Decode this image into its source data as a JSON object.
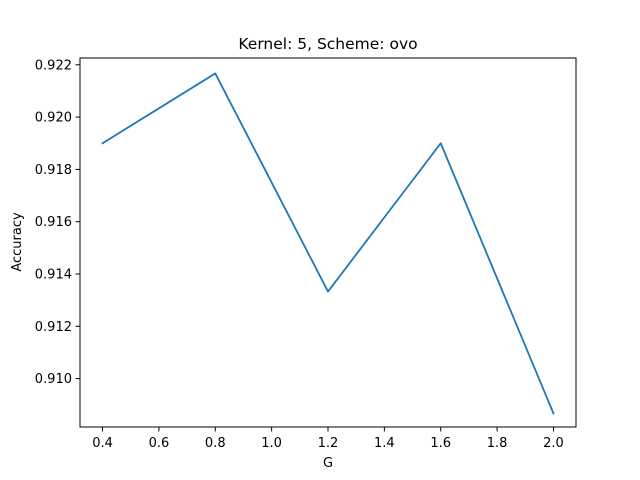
{
  "chart_data": {
    "type": "line",
    "title": "Kernel: 5, Scheme: ovo",
    "xlabel": "G",
    "ylabel": "Accuracy",
    "x": [
      0.4,
      0.8,
      1.2,
      1.6,
      2.0
    ],
    "series": [
      {
        "values": [
          0.919,
          0.92167,
          0.91333,
          0.919,
          0.90867
        ],
        "color": "#1f77b4"
      }
    ],
    "xlim": [
      0.32,
      2.08
    ],
    "ylim": [
      0.90815,
      0.92226
    ],
    "xticks": [
      0.4,
      0.6,
      0.8,
      1.0,
      1.2,
      1.4,
      1.6,
      1.8,
      2.0
    ],
    "xtick_labels": [
      "0.4",
      "0.6",
      "0.8",
      "1.0",
      "1.2",
      "1.4",
      "1.6",
      "1.8",
      "2.0"
    ],
    "yticks": [
      0.91,
      0.912,
      0.914,
      0.916,
      0.918,
      0.92,
      0.922
    ],
    "ytick_labels": [
      "0.910",
      "0.912",
      "0.914",
      "0.916",
      "0.918",
      "0.920",
      "0.922"
    ],
    "grid": false,
    "legend": false
  }
}
